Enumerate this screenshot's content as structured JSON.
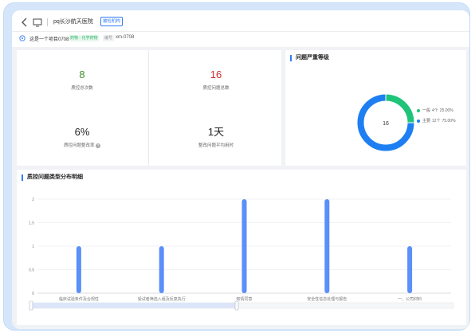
{
  "header": {
    "title": "pq长沙航天医院",
    "org_badge": "被检机构",
    "project_name": "这是一个项目0708",
    "project_type": "药物 - 化学药物",
    "code_label": "编号",
    "code_value": "xm-0708"
  },
  "stats": [
    {
      "value": "8",
      "label": "质控总次数"
    },
    {
      "value": "16",
      "label": "质控问题总数"
    },
    {
      "value": "6%",
      "label": "质控问题整改率"
    },
    {
      "value": "1天",
      "label": "整改问题平均用时"
    }
  ],
  "severity": {
    "title": "问题严重等级",
    "total_label": "16",
    "items": [
      {
        "name": "一般",
        "count": "4个",
        "percent": "25.00%",
        "color": "#1fc47a",
        "fraction": 0.25
      },
      {
        "name": "主要",
        "count": "12个",
        "percent": "75.00%",
        "color": "#1e7ff2",
        "fraction": 0.75
      }
    ]
  },
  "chart_data": {
    "type": "bar",
    "title": "质控问题类型分布明细",
    "categories": [
      "临床试验条件及合规性",
      "受试者筛选入组及反复执行",
      "知情同意",
      "安全性信息处理与报告",
      "一、公司材料"
    ],
    "values": [
      1,
      1,
      2,
      2,
      1
    ],
    "ylim": [
      0,
      2
    ],
    "yticks": [
      "0",
      "0.5",
      "1",
      "1.5",
      "2"
    ],
    "bar_color": "#5b8ff9",
    "grid": true,
    "datazoom": true
  }
}
